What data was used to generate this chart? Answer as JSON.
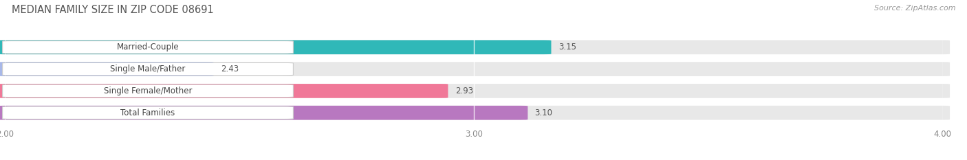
{
  "title": "MEDIAN FAMILY SIZE IN ZIP CODE 08691",
  "source": "Source: ZipAtlas.com",
  "categories": [
    "Married-Couple",
    "Single Male/Father",
    "Single Female/Mother",
    "Total Families"
  ],
  "values": [
    3.15,
    2.43,
    2.93,
    3.1
  ],
  "bar_colors": [
    "#30b8b8",
    "#a8b8e8",
    "#f07898",
    "#b878c0"
  ],
  "xlim_min": 2.0,
  "xlim_max": 4.0,
  "xticks": [
    2.0,
    3.0,
    4.0
  ],
  "xtick_labels": [
    "2.00",
    "3.00",
    "4.00"
  ],
  "background_color": "#ffffff",
  "bar_bgcolor": "#e8e8e8",
  "bar_height": 0.62,
  "label_fontsize": 8.5,
  "title_fontsize": 10.5,
  "value_fontsize": 8.5,
  "source_fontsize": 8,
  "title_color": "#555555",
  "source_color": "#999999",
  "tick_color": "#888888",
  "value_color": "#555555",
  "label_color": "#444444"
}
